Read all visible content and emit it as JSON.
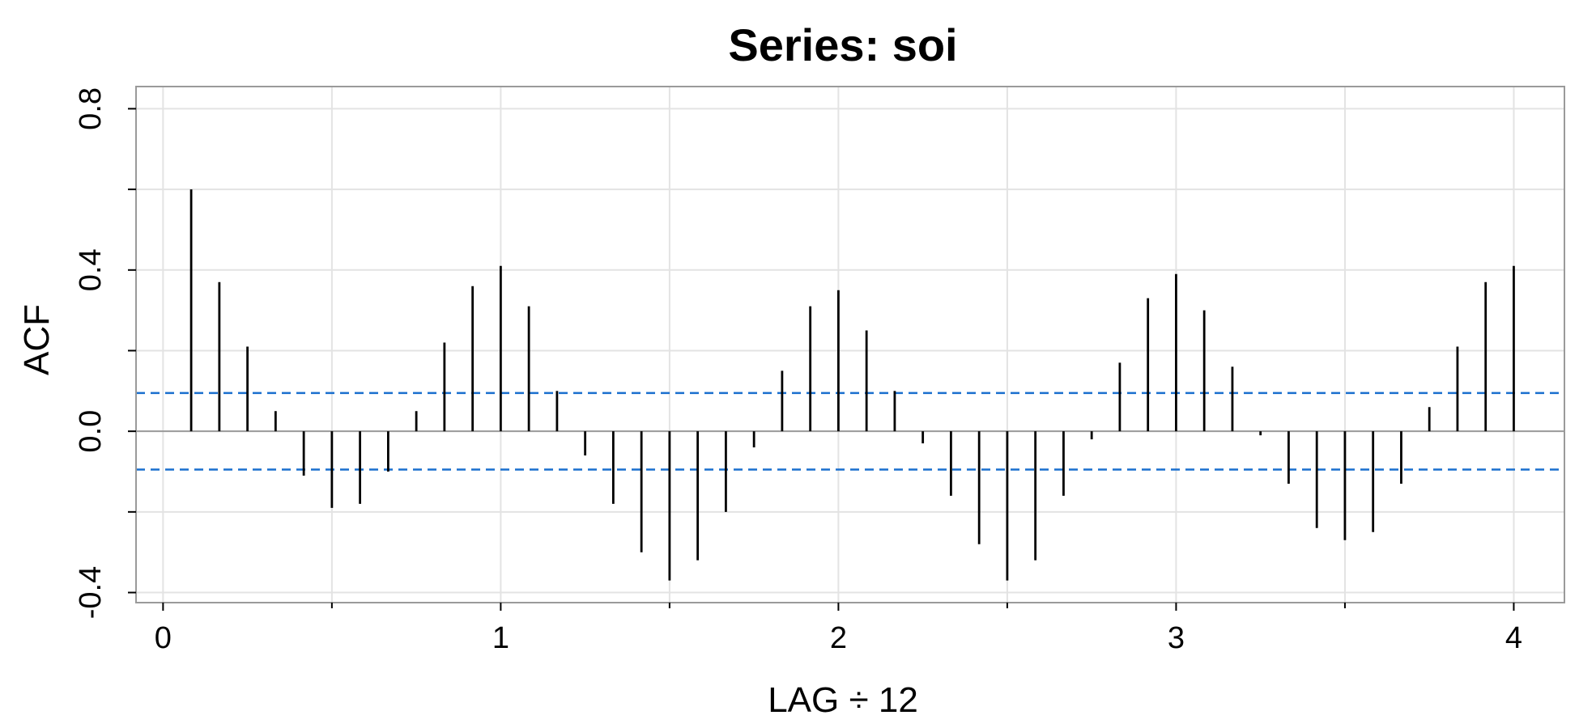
{
  "chart_data": {
    "type": "bar",
    "title": "Series:  soi",
    "xlabel": "LAG ÷ 12",
    "ylabel": "ACF",
    "xlim": [
      -0.08,
      4.15
    ],
    "ylim": [
      -0.425,
      0.855
    ],
    "x_ticks": [
      0,
      1,
      2,
      3,
      4
    ],
    "x_tick_labels": [
      "0",
      "1",
      "2",
      "3",
      "4"
    ],
    "x_minor_ticks": [
      0.5,
      1.5,
      2.5,
      3.5
    ],
    "y_ticks": [
      -0.4,
      0.0,
      0.4,
      0.8
    ],
    "y_tick_labels": [
      "-0.4",
      "0.0",
      "0.4",
      "0.8"
    ],
    "y_grid": [
      -0.4,
      -0.2,
      0.0,
      0.2,
      0.4,
      0.6,
      0.8
    ],
    "grid": true,
    "confidence_band": 0.095,
    "colors": {
      "spike": "#000000",
      "confidence": "#1a6fce",
      "grid": "#e3e3e3",
      "frame": "#9a9a9a",
      "zero_line": "#9a9a9a"
    },
    "series": [
      {
        "x": [
          0.0833,
          0.1667,
          0.25,
          0.3333,
          0.4167,
          0.5,
          0.5833,
          0.6667,
          0.75,
          0.8333,
          0.9167,
          1.0,
          1.0833,
          1.1667,
          1.25,
          1.3333,
          1.4167,
          1.5,
          1.5833,
          1.6667,
          1.75,
          1.8333,
          1.9167,
          2.0,
          2.0833,
          2.1667,
          2.25,
          2.3333,
          2.4167,
          2.5,
          2.5833,
          2.6667,
          2.75,
          2.8333,
          2.9167,
          3.0,
          3.0833,
          3.1667,
          3.25,
          3.3333,
          3.4167,
          3.5,
          3.5833,
          3.6667,
          3.75,
          3.8333,
          3.9167,
          4.0
        ],
        "values": [
          0.6,
          0.37,
          0.21,
          0.05,
          -0.11,
          -0.19,
          -0.18,
          -0.1,
          0.05,
          0.22,
          0.36,
          0.41,
          0.31,
          0.1,
          -0.06,
          -0.18,
          -0.3,
          -0.37,
          -0.32,
          -0.2,
          -0.04,
          0.15,
          0.31,
          0.35,
          0.25,
          0.1,
          -0.03,
          -0.16,
          -0.28,
          -0.37,
          -0.32,
          -0.16,
          -0.02,
          0.17,
          0.33,
          0.39,
          0.3,
          0.16,
          -0.01,
          -0.13,
          -0.24,
          -0.27,
          -0.25,
          -0.13,
          0.06,
          0.21,
          0.37,
          0.41
        ]
      }
    ]
  }
}
